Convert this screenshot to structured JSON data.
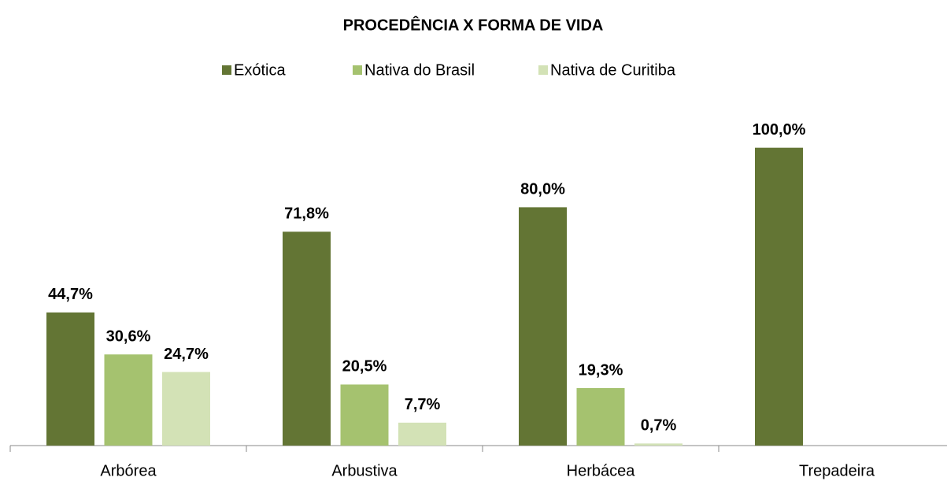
{
  "chart_data": {
    "type": "bar",
    "title": "PROCEDÊNCIA X FORMA DE VIDA",
    "categories": [
      "Arbórea",
      "Arbustiva",
      "Herbácea",
      "Trepadeira"
    ],
    "series": [
      {
        "name": "Exótica",
        "color": "#637534",
        "values": [
          44.7,
          71.8,
          80.0,
          100.0
        ],
        "value_labels": [
          "44,7%",
          "71,8%",
          "80,0%",
          "100,0%"
        ]
      },
      {
        "name": "Nativa do Brasil",
        "color": "#a5c26f",
        "values": [
          30.6,
          20.5,
          19.3,
          null
        ],
        "value_labels": [
          "30,6%",
          "20,5%",
          "19,3%",
          null
        ]
      },
      {
        "name": "Nativa de Curitiba",
        "color": "#d3e2b6",
        "values": [
          24.7,
          7.7,
          0.7,
          null
        ],
        "value_labels": [
          "24,7%",
          "7,7%",
          "0,7%",
          null
        ]
      }
    ],
    "ylim": [
      0,
      120
    ],
    "legend": "top"
  }
}
